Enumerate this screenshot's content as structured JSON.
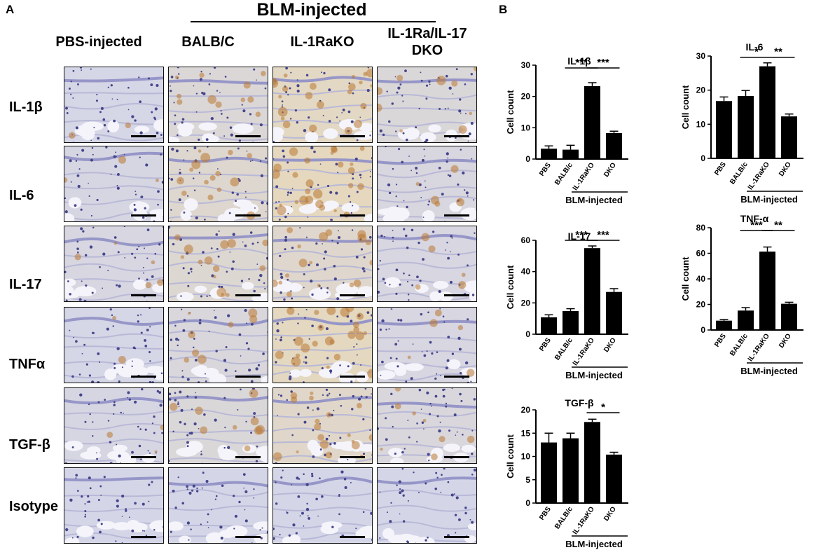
{
  "panel_a": {
    "letter": "A",
    "group_label": "BLM-injected",
    "columns": [
      "PBS-injected",
      "BALB/C",
      "IL-1RaKO",
      "IL-1Ra/IL-17\nDKO"
    ],
    "rows": [
      "IL-1β",
      "IL-6",
      "IL-17",
      "TNFα",
      "TGF-β",
      "Isotype"
    ]
  },
  "panel_b": {
    "letter": "B"
  },
  "chart_data": [
    {
      "type": "bar",
      "title": "IL-1β",
      "categories": [
        "PBS",
        "BALB/c",
        "IL-1RaKO",
        "DKO"
      ],
      "values": [
        3.3,
        3.0,
        23.3,
        8.3
      ],
      "errors": [
        0.9,
        1.4,
        1.1,
        0.6
      ],
      "ylabel": "Cell count",
      "ylim": [
        0,
        30
      ],
      "yticks": [
        0,
        10,
        20,
        30
      ],
      "group_label": "BLM-injected",
      "significance": [
        {
          "from": 1,
          "to": 2,
          "label": "***"
        },
        {
          "from": 2,
          "to": 3,
          "label": "***"
        }
      ]
    },
    {
      "type": "bar",
      "title": "IL-6",
      "categories": [
        "PBS",
        "BALB/c",
        "IL-1RaKO",
        "DKO"
      ],
      "values": [
        16.8,
        18.3,
        27.0,
        12.3
      ],
      "errors": [
        1.2,
        1.6,
        1.0,
        0.7
      ],
      "ylabel": "Cell count",
      "ylim": [
        0,
        30
      ],
      "yticks": [
        0,
        10,
        20,
        30
      ],
      "group_label": "BLM-injected",
      "significance": [
        {
          "from": 1,
          "to": 2,
          "label": "*"
        },
        {
          "from": 2,
          "to": 3,
          "label": "**"
        }
      ]
    },
    {
      "type": "bar",
      "title": "IL-17",
      "categories": [
        "PBS",
        "BALB/c",
        "IL-1RaKO",
        "DKO"
      ],
      "values": [
        10.8,
        14.8,
        55.0,
        27.0
      ],
      "errors": [
        1.6,
        1.5,
        1.4,
        2.1
      ],
      "ylabel": "Cell count",
      "ylim": [
        0,
        60
      ],
      "yticks": [
        0,
        20,
        40,
        60
      ],
      "group_label": "BLM-injected",
      "significance": [
        {
          "from": 1,
          "to": 2,
          "label": "***"
        },
        {
          "from": 2,
          "to": 3,
          "label": "***"
        }
      ]
    },
    {
      "type": "bar",
      "title": "TNF-α",
      "categories": [
        "PBS",
        "BALB/c",
        "IL-1RaKO",
        "DKO"
      ],
      "values": [
        7.3,
        15.2,
        61.3,
        20.5
      ],
      "errors": [
        0.9,
        2.3,
        3.6,
        1.2
      ],
      "ylabel": "Cell count",
      "ylim": [
        0,
        80
      ],
      "yticks": [
        0,
        20,
        40,
        60,
        80
      ],
      "group_label": "BLM-injected",
      "significance": [
        {
          "from": 1,
          "to": 2,
          "label": "***"
        },
        {
          "from": 2,
          "to": 3,
          "label": "**"
        }
      ]
    },
    {
      "type": "bar",
      "title": "TGF-β",
      "categories": [
        "PBS",
        "BALB/c",
        "IL-1RaKO",
        "DKO"
      ],
      "values": [
        13.0,
        13.9,
        17.4,
        10.4
      ],
      "errors": [
        2.0,
        1.1,
        0.6,
        0.5
      ],
      "ylabel": "Cell count",
      "ylim": [
        0,
        20
      ],
      "yticks": [
        0,
        5,
        10,
        15,
        20
      ],
      "group_label": "BLM-injected",
      "significance": [
        {
          "from": 2,
          "to": 3,
          "label": "*"
        }
      ]
    }
  ]
}
